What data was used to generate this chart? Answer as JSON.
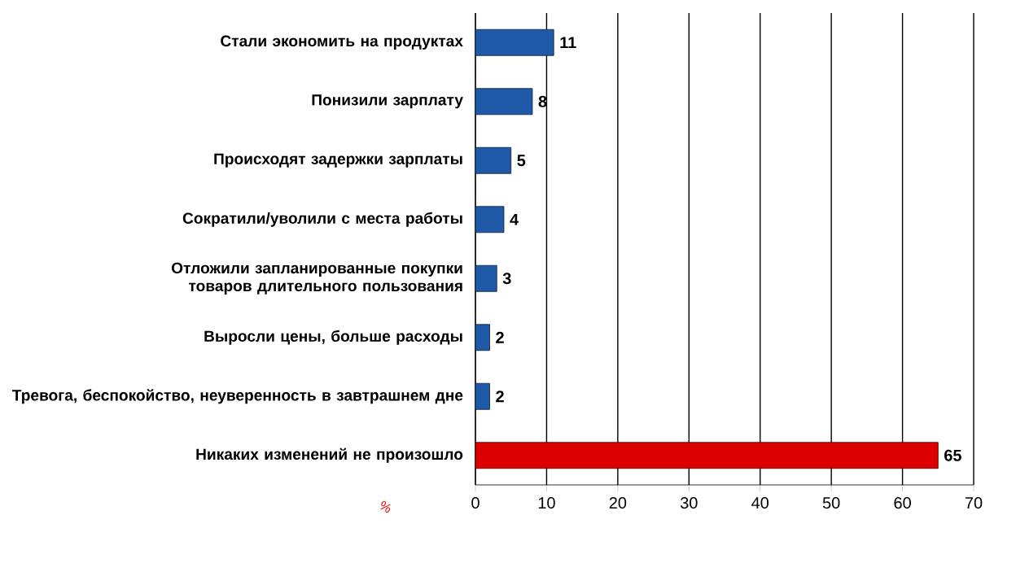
{
  "chart_data": {
    "type": "bar",
    "orientation": "horizontal",
    "xlabel": "%",
    "categories": [
      "Стали экономить на продуктах",
      "Понизили зарплату",
      "Происходят задержки зарплаты",
      "Сократили/уволили с места работы",
      "Отложили запланированные покупки товаров длительного пользования",
      "Выросли цены, больше расходы",
      "Тревога, беспокойство, неуверенность в завтрашнем дне",
      "Никаких изменений не произошло"
    ],
    "values": [
      11,
      8,
      5,
      4,
      3,
      2,
      2,
      65
    ],
    "colors": [
      "#1f5aa8",
      "#1f5aa8",
      "#1f5aa8",
      "#1f5aa8",
      "#1f5aa8",
      "#1f5aa8",
      "#1f5aa8",
      "#dd0000"
    ],
    "xlim": [
      0,
      70
    ],
    "xticks": [
      0,
      10,
      20,
      30,
      40,
      50,
      60,
      70
    ],
    "grid": "x",
    "data_labels": true
  }
}
